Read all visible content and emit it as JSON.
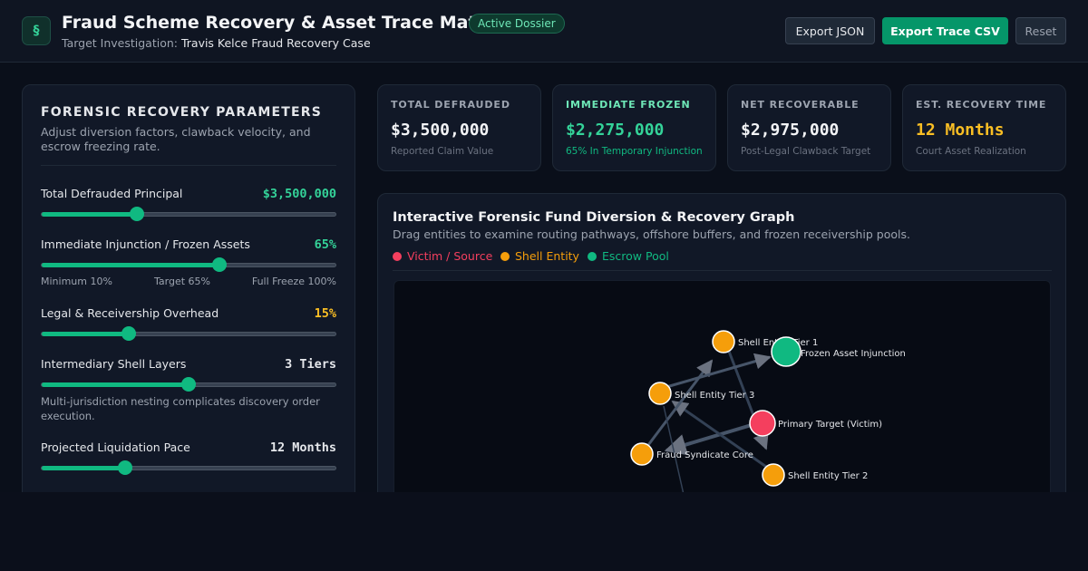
{
  "header": {
    "icon_glyph": "§",
    "title": "Fraud Scheme Recovery & Asset Trace Matrix",
    "badge": "Active Dossier",
    "subtitle_label": "Target Investigation:",
    "subtitle_value": "Travis Kelce Fraud Recovery Case",
    "buttons": {
      "export_json": "Export JSON",
      "export_csv": "Export Trace CSV",
      "reset": "Reset"
    }
  },
  "panel": {
    "title": "FORENSIC RECOVERY PARAMETERS",
    "description": "Adjust diversion factors, clawback velocity, and escrow freezing rate.",
    "params": [
      {
        "label": "Total Defrauded Principal",
        "value": "$3,500,000",
        "level": 0.325,
        "color": "#34d399"
      },
      {
        "label": "Immediate Injunction / Frozen Assets",
        "value": "65%",
        "level": 0.606,
        "color": "#34d399",
        "range_labels": [
          "Minimum 10%",
          "Target 65%",
          "Full Freeze 100%"
        ]
      },
      {
        "label": "Legal & Receivership Overhead",
        "value": "15%",
        "level": 0.297,
        "color": "#fbbf24"
      },
      {
        "label": "Intermediary Shell Layers",
        "value": "3 Tiers",
        "level": 0.5,
        "color": "#e5e7eb",
        "note": "Multi-jurisdiction nesting complicates discovery order execution."
      },
      {
        "label": "Projected Liquidation Pace",
        "value": "12 Months",
        "level": 0.285,
        "color": "#e5e7eb"
      }
    ]
  },
  "cards": [
    {
      "label": "TOTAL DEFRAUDED",
      "value": "$3,500,000",
      "note": "Reported Claim Value",
      "label_color": "#9ca3af",
      "value_color": "#f3f4f6",
      "note_color": "#6b7280"
    },
    {
      "label": "IMMEDIATE FROZEN",
      "value": "$2,275,000",
      "note": "65% In Temporary Injunction",
      "label_color": "#6ee7b7",
      "value_color": "#34d399",
      "note_color": "#10b981"
    },
    {
      "label": "NET RECOVERABLE",
      "value": "$2,975,000",
      "note": "Post-Legal Clawback Target",
      "label_color": "#9ca3af",
      "value_color": "#f3f4f6",
      "note_color": "#6b7280"
    },
    {
      "label": "EST. RECOVERY TIME",
      "value": "12 Months",
      "note": "Court Asset Realization",
      "label_color": "#9ca3af",
      "value_color": "#fbbf24",
      "note_color": "#6b7280"
    }
  ],
  "graph": {
    "title": "Interactive Forensic Fund Diversion & Recovery Graph",
    "description": "Drag entities to examine routing pathways, offshore buffers, and frozen receivership pools.",
    "legend": [
      {
        "label": "Victim / Source",
        "color": "#f43f5e"
      },
      {
        "label": "Shell Entity",
        "color": "#f59e0b"
      },
      {
        "label": "Escrow Pool",
        "color": "#10b981"
      }
    ],
    "nodes": [
      {
        "id": "tier1",
        "label": "Shell Entity Tier 1",
        "type": "shell"
      },
      {
        "id": "frozen",
        "label": "Frozen Asset Injunction",
        "type": "escrow"
      },
      {
        "id": "tier3",
        "label": "Shell Entity Tier 3",
        "type": "shell"
      },
      {
        "id": "victim",
        "label": "Primary Target (Victim)",
        "type": "victim"
      },
      {
        "id": "core",
        "label": "Fraud Syndicate Core",
        "type": "shell"
      },
      {
        "id": "tier2",
        "label": "Shell Entity Tier 2",
        "type": "shell"
      }
    ],
    "edges": [
      {
        "from": "victim",
        "to": "core"
      },
      {
        "from": "tier1",
        "to": "tier2"
      },
      {
        "from": "tier2",
        "to": "tier3"
      },
      {
        "from": "core",
        "to": "tier1"
      },
      {
        "from": "tier3",
        "to": "frozen"
      }
    ]
  }
}
